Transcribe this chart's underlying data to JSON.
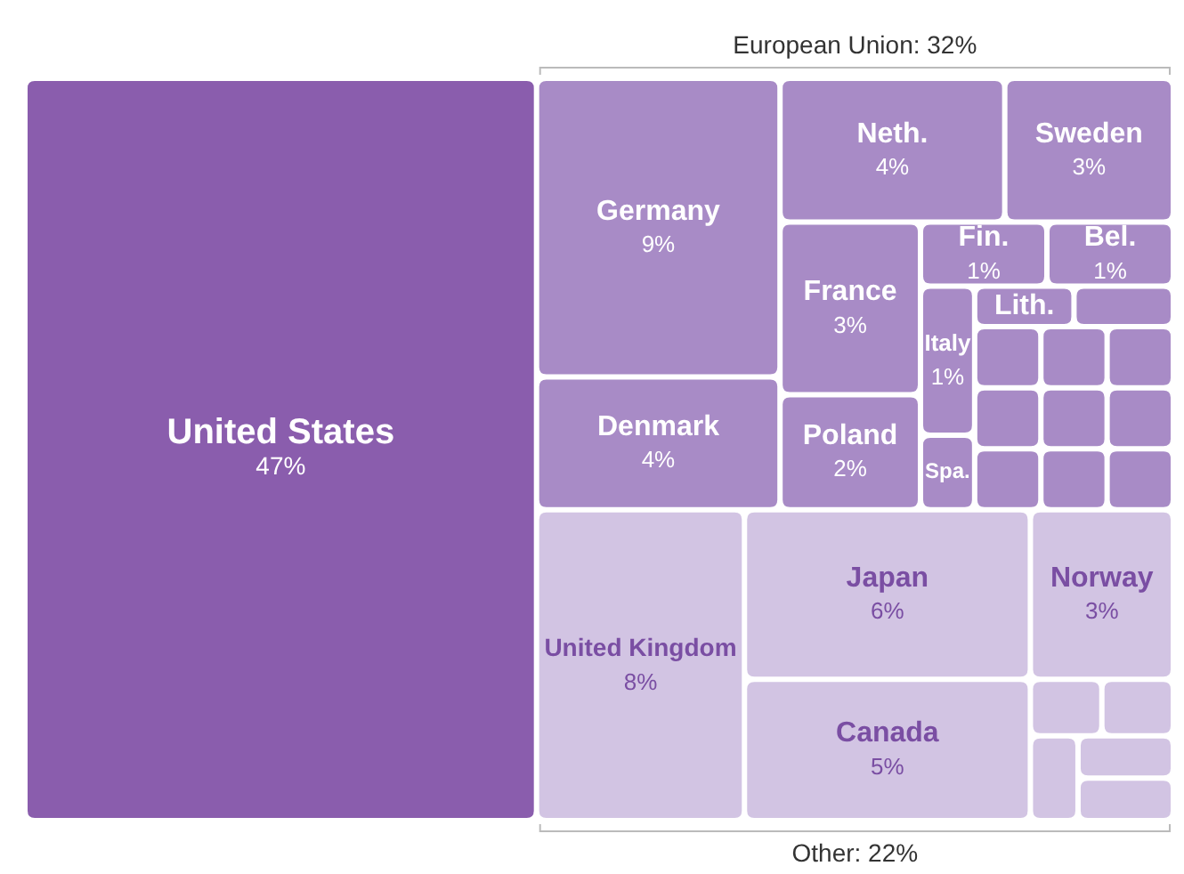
{
  "chart_data": {
    "type": "other",
    "categories": [
      "United States",
      "Germany",
      "Denmark",
      "Neth.",
      "Sweden",
      "France",
      "Poland",
      "Fin.",
      "Bel.",
      "Italy",
      "Spa.",
      "Lith.",
      null,
      null,
      null,
      null,
      null,
      null,
      null,
      null,
      null,
      null,
      "United Kingdom",
      "Japan",
      "Canada",
      "Norway",
      null,
      null,
      null,
      null,
      null
    ],
    "values": [
      47,
      9,
      4,
      4,
      3,
      3,
      2,
      1,
      1,
      1,
      null,
      null,
      null,
      null,
      null,
      null,
      null,
      null,
      null,
      null,
      null,
      null,
      8,
      6,
      5,
      3,
      null,
      null,
      null,
      null,
      null
    ],
    "value_labels": [
      "47%",
      "9%",
      "4%",
      "4%",
      "3%",
      "3%",
      "2%",
      "1%",
      "1%",
      "1%",
      null,
      null,
      null,
      null,
      null,
      null,
      null,
      null,
      null,
      null,
      null,
      null,
      "8%",
      "6%",
      "5%",
      "3%",
      null,
      null,
      null,
      null,
      null
    ],
    "colors": [
      "#8a5dad",
      "#a88bc6",
      "#a88bc6",
      "#a88bc6",
      "#a88bc6",
      "#a88bc6",
      "#a88bc6",
      "#a88bc6",
      "#a88bc6",
      "#a88bc6",
      "#a88bc6",
      "#a88bc6",
      "#a88bc6",
      "#a88bc6",
      "#a88bc6",
      "#a88bc6",
      "#a88bc6",
      "#a88bc6",
      "#a88bc6",
      "#a88bc6",
      "#a88bc6",
      "#a88bc6",
      "#d2c4e3",
      "#d2c4e3",
      "#d2c4e3",
      "#d2c4e3",
      "#d2c4e3",
      "#d2c4e3",
      "#d2c4e3",
      "#d2c4e3",
      "#d2c4e3"
    ],
    "annotations": [
      "European Union: 32%",
      "Other: 22%"
    ]
  }
}
